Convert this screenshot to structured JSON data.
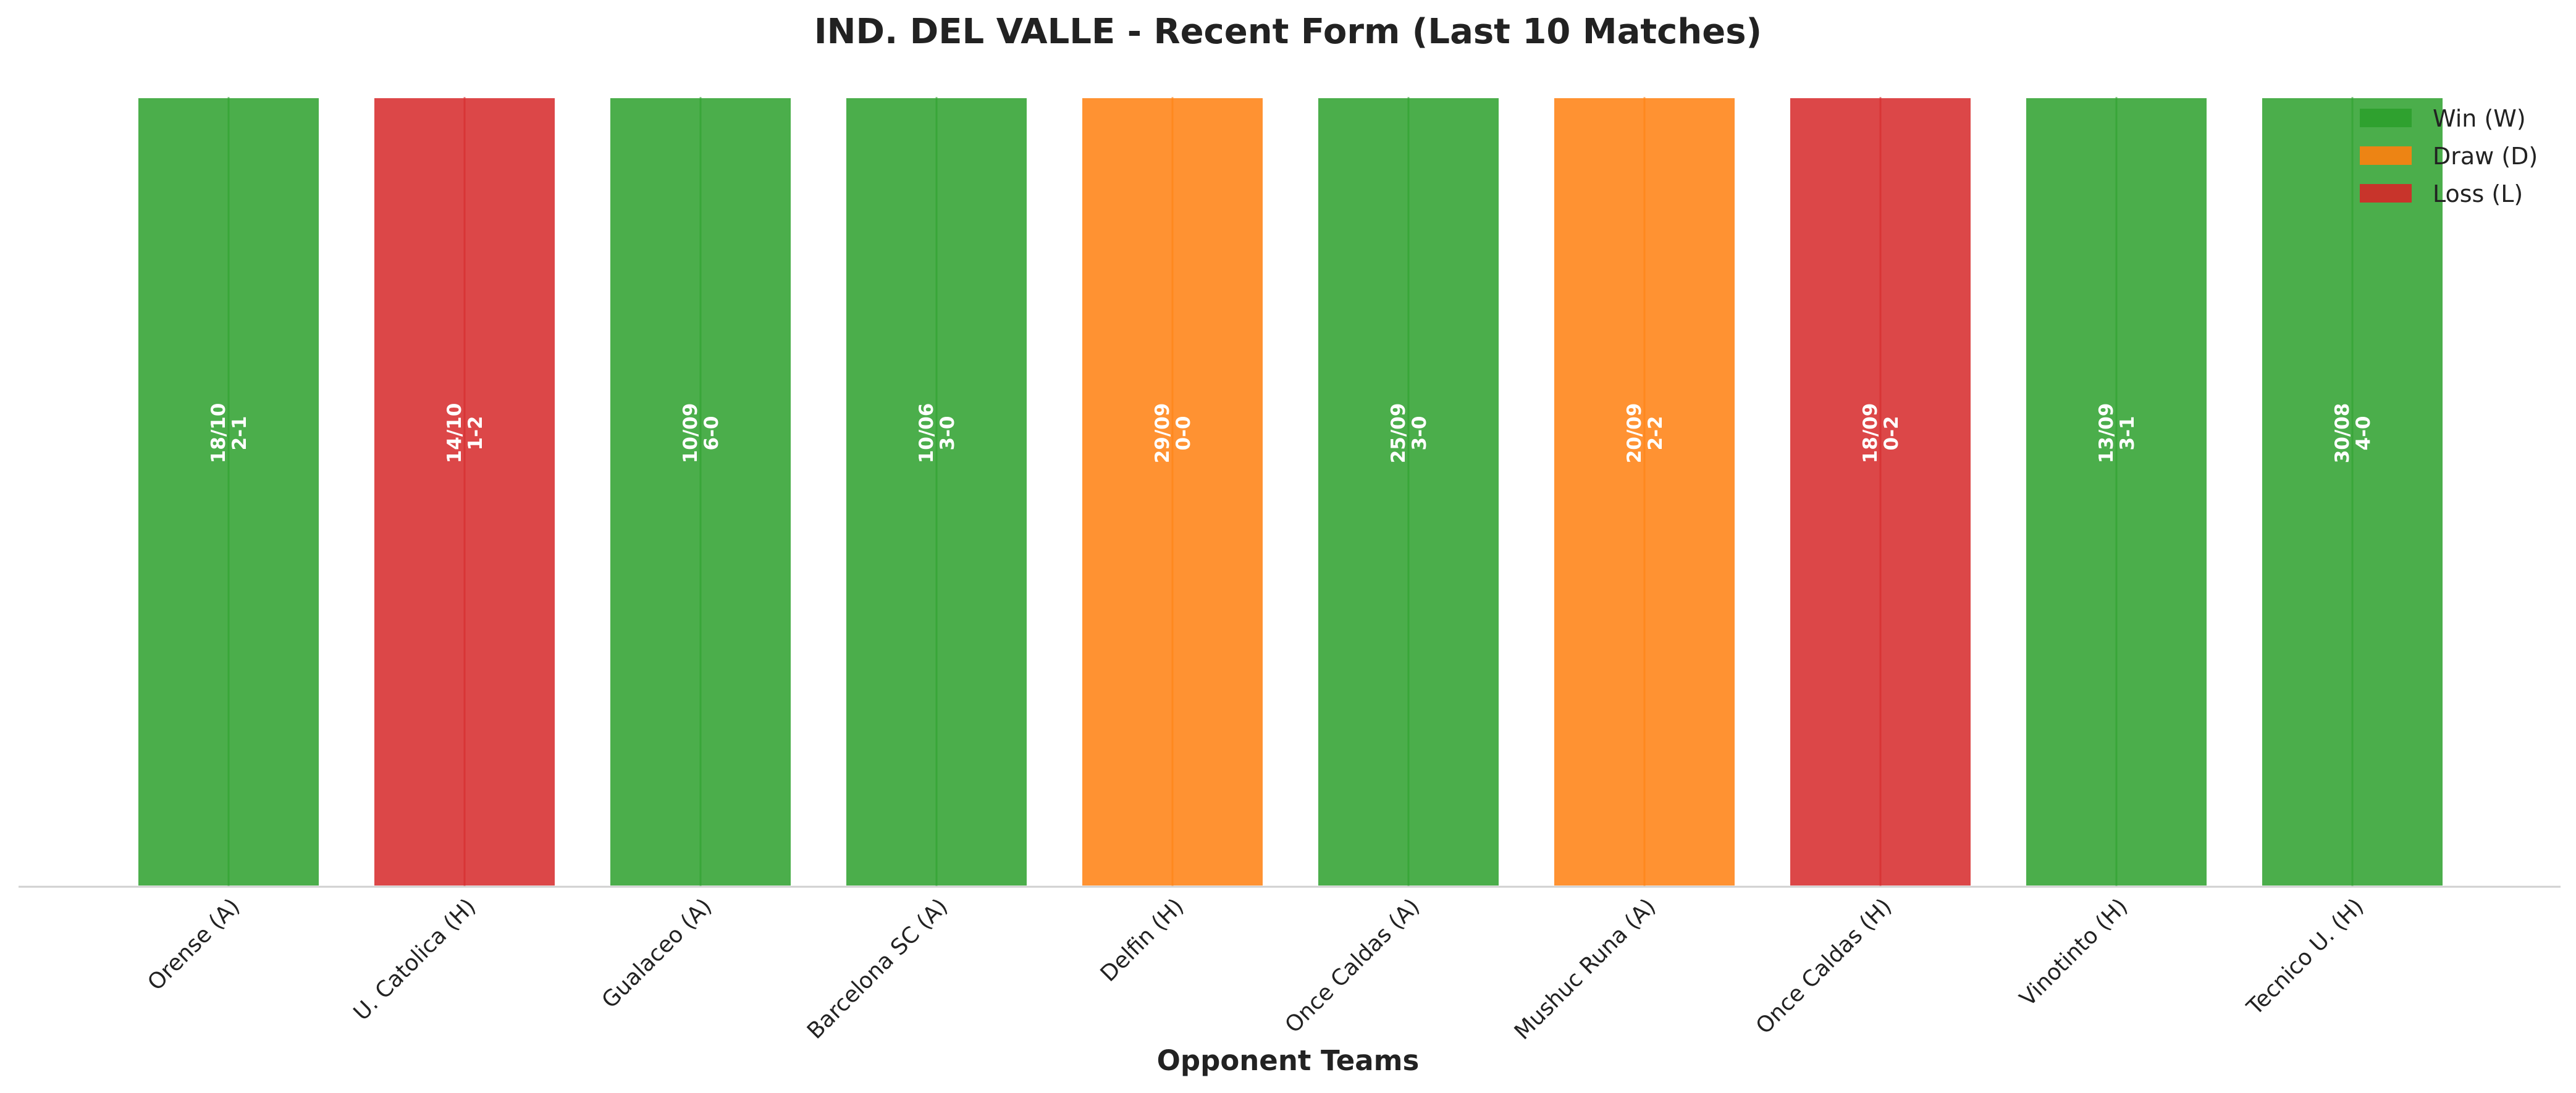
{
  "chart_data": {
    "type": "bar",
    "title": "IND. DEL VALLE - Recent Form (Last 10 Matches)",
    "xlabel": "Opponent Teams",
    "ylabel": "",
    "ylim": [
      0,
      1
    ],
    "grid": false,
    "categories": [
      "Orense (A)",
      "U. Catolica (H)",
      "Gualaceo (A)",
      "Barcelona SC (A)",
      "Delfin (H)",
      "Once Caldas (A)",
      "Mushuc Runa (A)",
      "Once Caldas (H)",
      "Vinotinto (H)",
      "Tecnico U. (H)"
    ],
    "values": [
      1,
      1,
      1,
      1,
      1,
      1,
      1,
      1,
      1,
      1
    ],
    "results": [
      "W",
      "L",
      "W",
      "W",
      "D",
      "W",
      "D",
      "L",
      "W",
      "W"
    ],
    "dates": [
      "18/10",
      "14/10",
      "10/09",
      "10/06",
      "29/09",
      "25/09",
      "20/09",
      "18/09",
      "13/09",
      "30/08"
    ],
    "scores": [
      "2-1",
      "1-2",
      "6-0",
      "3-0",
      "0-0",
      "3-0",
      "2-2",
      "0-2",
      "3-1",
      "4-0"
    ],
    "colors": {
      "W": "#2ca02c",
      "D": "#ff7f0e",
      "L": "#d62728"
    },
    "legend": {
      "placement": "top-right",
      "entries": [
        {
          "key": "W",
          "label": "Win (W)"
        },
        {
          "key": "D",
          "label": "Draw (D)"
        },
        {
          "key": "L",
          "label": "Loss (L)"
        }
      ]
    }
  }
}
